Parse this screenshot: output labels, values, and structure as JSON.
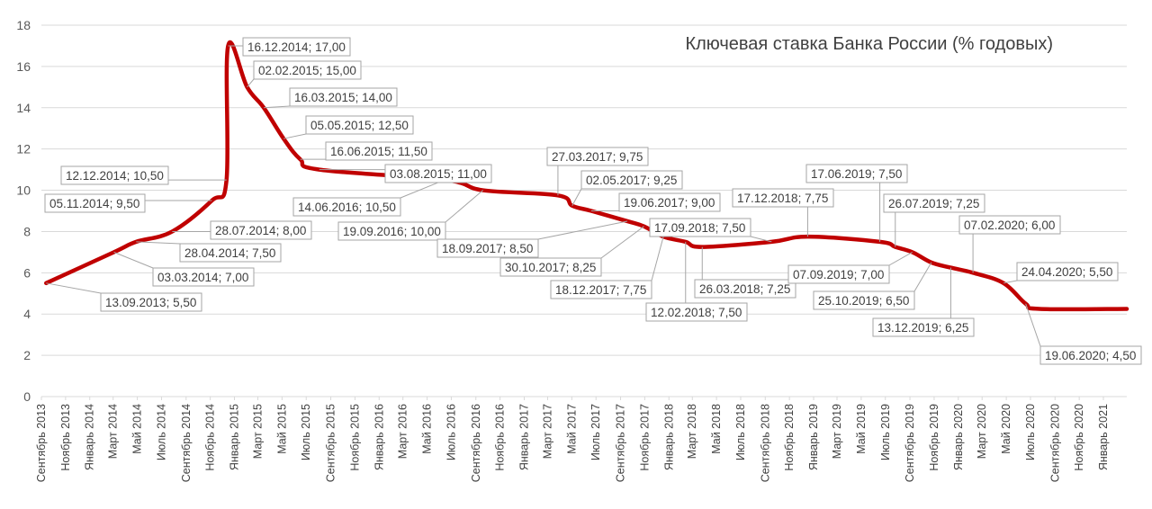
{
  "chart_data": {
    "type": "line",
    "title": "Ключевая ставка Банка России (% годовых)",
    "xlabel": "",
    "ylabel": "",
    "ylim": [
      0,
      18
    ],
    "yticks": [
      0,
      2,
      4,
      6,
      8,
      10,
      12,
      14,
      16,
      18
    ],
    "grid": "horizontal",
    "xlim": [
      "2013-09-01",
      "2021-03-01"
    ],
    "x_tick_labels": [
      {
        "date": "2013-09-01",
        "label": "Сентябрь 2013"
      },
      {
        "date": "2013-11-01",
        "label": "Ноябрь 2013"
      },
      {
        "date": "2014-01-01",
        "label": "Январь 2014"
      },
      {
        "date": "2014-03-01",
        "label": "Март 2014"
      },
      {
        "date": "2014-05-01",
        "label": "Май 2014"
      },
      {
        "date": "2014-07-01",
        "label": "Июль 2014"
      },
      {
        "date": "2014-09-01",
        "label": "Сентябрь 2014"
      },
      {
        "date": "2014-11-01",
        "label": "Ноябрь 2014"
      },
      {
        "date": "2015-01-01",
        "label": "Январь 2015"
      },
      {
        "date": "2015-03-01",
        "label": "Март 2015"
      },
      {
        "date": "2015-05-01",
        "label": "Май 2015"
      },
      {
        "date": "2015-07-01",
        "label": "Июль 2015"
      },
      {
        "date": "2015-09-01",
        "label": "Сентябрь 2015"
      },
      {
        "date": "2015-11-01",
        "label": "Ноябрь 2015"
      },
      {
        "date": "2016-01-01",
        "label": "Январь 2016"
      },
      {
        "date": "2016-03-01",
        "label": "Март 2016"
      },
      {
        "date": "2016-05-01",
        "label": "Май 2016"
      },
      {
        "date": "2016-07-01",
        "label": "Июль 2016"
      },
      {
        "date": "2016-09-01",
        "label": "Сентябрь 2016"
      },
      {
        "date": "2016-11-01",
        "label": "Ноябрь 2016"
      },
      {
        "date": "2017-01-01",
        "label": "Январь 2017"
      },
      {
        "date": "2017-03-01",
        "label": "Март 2017"
      },
      {
        "date": "2017-05-01",
        "label": "Май 2017"
      },
      {
        "date": "2017-07-01",
        "label": "Июль 2017"
      },
      {
        "date": "2017-09-01",
        "label": "Сентябрь 2017"
      },
      {
        "date": "2017-11-01",
        "label": "Ноябрь 2017"
      },
      {
        "date": "2018-01-01",
        "label": "Январь 2018"
      },
      {
        "date": "2018-03-01",
        "label": "Март 2018"
      },
      {
        "date": "2018-05-01",
        "label": "Май 2018"
      },
      {
        "date": "2018-07-01",
        "label": "Июль 2018"
      },
      {
        "date": "2018-09-01",
        "label": "Сентябрь 2018"
      },
      {
        "date": "2018-11-01",
        "label": "Ноябрь 2018"
      },
      {
        "date": "2019-01-01",
        "label": "Январь 2019"
      },
      {
        "date": "2019-03-01",
        "label": "Март 2019"
      },
      {
        "date": "2019-05-01",
        "label": "Май 2019"
      },
      {
        "date": "2019-07-01",
        "label": "Июль 2019"
      },
      {
        "date": "2019-09-01",
        "label": "Сентябрь 2019"
      },
      {
        "date": "2019-11-01",
        "label": "Ноябрь 2019"
      },
      {
        "date": "2020-01-01",
        "label": "Январь 2020"
      },
      {
        "date": "2020-03-01",
        "label": "Март 2020"
      },
      {
        "date": "2020-05-01",
        "label": "Май 2020"
      },
      {
        "date": "2020-07-01",
        "label": "Июль 2020"
      },
      {
        "date": "2020-09-01",
        "label": "Сентябрь 2020"
      },
      {
        "date": "2020-11-01",
        "label": "Ноябрь 2020"
      },
      {
        "date": "2021-01-01",
        "label": "Январь 2021"
      }
    ],
    "series": [
      {
        "color": "#c00000",
        "points": [
          {
            "x": "2013-09-13",
            "y": 5.5
          },
          {
            "x": "2014-03-03",
            "y": 7.0
          },
          {
            "x": "2014-04-28",
            "y": 7.5
          },
          {
            "x": "2014-07-28",
            "y": 8.0
          },
          {
            "x": "2014-11-05",
            "y": 9.5
          },
          {
            "x": "2014-12-12",
            "y": 10.5
          },
          {
            "x": "2014-12-16",
            "y": 17.0
          },
          {
            "x": "2015-02-02",
            "y": 15.0
          },
          {
            "x": "2015-03-16",
            "y": 14.0
          },
          {
            "x": "2015-05-05",
            "y": 12.5
          },
          {
            "x": "2015-06-16",
            "y": 11.5
          },
          {
            "x": "2015-08-03",
            "y": 11.0
          },
          {
            "x": "2016-06-14",
            "y": 10.5
          },
          {
            "x": "2016-09-19",
            "y": 10.0
          },
          {
            "x": "2017-03-27",
            "y": 9.75
          },
          {
            "x": "2017-05-02",
            "y": 9.25
          },
          {
            "x": "2017-06-19",
            "y": 9.0
          },
          {
            "x": "2017-09-18",
            "y": 8.5
          },
          {
            "x": "2017-10-30",
            "y": 8.25
          },
          {
            "x": "2017-12-18",
            "y": 7.75
          },
          {
            "x": "2018-02-12",
            "y": 7.5
          },
          {
            "x": "2018-03-26",
            "y": 7.25
          },
          {
            "x": "2018-09-17",
            "y": 7.5
          },
          {
            "x": "2018-12-17",
            "y": 7.75
          },
          {
            "x": "2019-06-17",
            "y": 7.5
          },
          {
            "x": "2019-07-26",
            "y": 7.25
          },
          {
            "x": "2019-09-07",
            "y": 7.0
          },
          {
            "x": "2019-10-25",
            "y": 6.5
          },
          {
            "x": "2019-12-13",
            "y": 6.25
          },
          {
            "x": "2020-02-07",
            "y": 6.0
          },
          {
            "x": "2020-04-24",
            "y": 5.5
          },
          {
            "x": "2020-06-19",
            "y": 4.5
          },
          {
            "x": "2020-07-24",
            "y": 4.25
          },
          {
            "x": "2021-03-01",
            "y": 4.25
          }
        ]
      }
    ],
    "annotations": [
      {
        "text": "13.09.2013; 5,50",
        "x": "2013-09-13",
        "y": 5.5
      },
      {
        "text": "03.03.2014; 7,00",
        "x": "2014-03-03",
        "y": 7.0
      },
      {
        "text": "28.04.2014; 7,50",
        "x": "2014-04-28",
        "y": 7.5
      },
      {
        "text": "28.07.2014; 8,00",
        "x": "2014-07-28",
        "y": 8.0
      },
      {
        "text": "05.11.2014; 9,50",
        "x": "2014-11-05",
        "y": 9.5
      },
      {
        "text": "12.12.2014; 10,50",
        "x": "2014-12-12",
        "y": 10.5
      },
      {
        "text": "16.12.2014; 17,00",
        "x": "2014-12-16",
        "y": 17.0
      },
      {
        "text": "02.02.2015; 15,00",
        "x": "2015-02-02",
        "y": 15.0
      },
      {
        "text": "16.03.2015; 14,00",
        "x": "2015-03-16",
        "y": 14.0
      },
      {
        "text": "05.05.2015; 12,50",
        "x": "2015-05-05",
        "y": 12.5
      },
      {
        "text": "16.06.2015; 11,50",
        "x": "2015-06-16",
        "y": 11.5
      },
      {
        "text": "03.08.2015; 11,00",
        "x": "2015-08-03",
        "y": 11.0
      },
      {
        "text": "14.06.2016; 10,50",
        "x": "2016-06-14",
        "y": 10.5
      },
      {
        "text": "19.09.2016; 10,00",
        "x": "2016-09-19",
        "y": 10.0
      },
      {
        "text": "27.03.2017; 9,75",
        "x": "2017-03-27",
        "y": 9.75
      },
      {
        "text": "02.05.2017; 9,25",
        "x": "2017-05-02",
        "y": 9.25
      },
      {
        "text": "19.06.2017; 9,00",
        "x": "2017-06-19",
        "y": 9.0
      },
      {
        "text": "18.09.2017; 8,50",
        "x": "2017-09-18",
        "y": 8.5
      },
      {
        "text": "30.10.2017; 8,25",
        "x": "2017-10-30",
        "y": 8.25
      },
      {
        "text": "18.12.2017; 7,75",
        "x": "2017-12-18",
        "y": 7.75
      },
      {
        "text": "12.02.2018; 7,50",
        "x": "2018-02-12",
        "y": 7.5
      },
      {
        "text": "26.03.2018; 7,25",
        "x": "2018-03-26",
        "y": 7.25
      },
      {
        "text": "17.09.2018; 7,50",
        "x": "2018-09-17",
        "y": 7.5
      },
      {
        "text": "17.12.2018; 7,75",
        "x": "2018-12-17",
        "y": 7.75
      },
      {
        "text": "17.06.2019; 7,50",
        "x": "2019-06-17",
        "y": 7.5
      },
      {
        "text": "26.07.2019; 7,25",
        "x": "2019-07-26",
        "y": 7.25
      },
      {
        "text": "07.09.2019; 7,00",
        "x": "2019-09-07",
        "y": 7.0
      },
      {
        "text": "25.10.2019; 6,50",
        "x": "2019-10-25",
        "y": 6.5
      },
      {
        "text": "13.12.2019; 6,25",
        "x": "2019-12-13",
        "y": 6.25
      },
      {
        "text": "07.02.2020; 6,00",
        "x": "2020-02-07",
        "y": 6.0
      },
      {
        "text": "24.04.2020; 5,50",
        "x": "2020-04-24",
        "y": 5.5
      },
      {
        "text": "19.06.2020; 4,50",
        "x": "2020-06-19",
        "y": 4.5
      }
    ]
  }
}
